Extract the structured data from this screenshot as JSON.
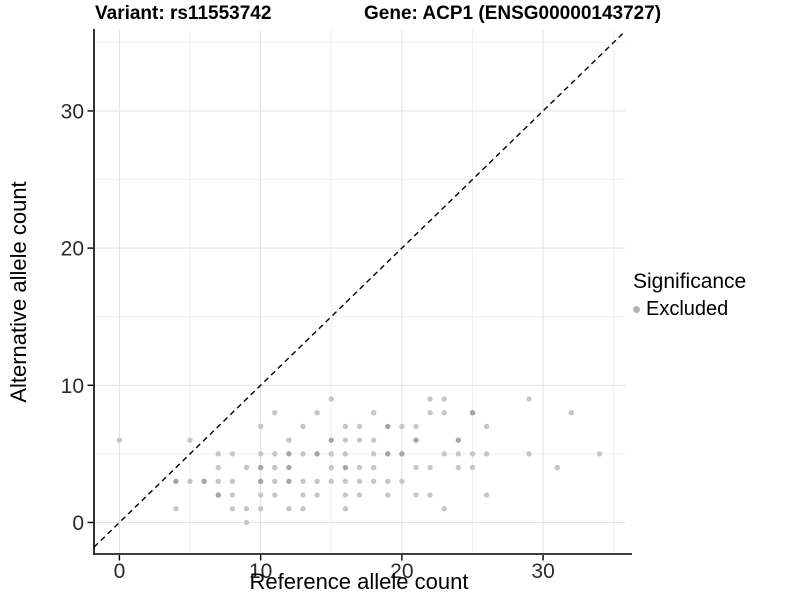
{
  "header": {
    "variant_title": "Variant: rs11553742",
    "gene_title": "Gene: ACP1 (ENSG00000143727)"
  },
  "legend": {
    "title": "Significance",
    "items": [
      {
        "label": "Excluded",
        "color": "#b3b3b3"
      }
    ]
  },
  "chart_data": {
    "type": "scatter",
    "title": "Variant: rs11553742  /  Gene: ACP1 (ENSG00000143727)",
    "xlabel": "Reference allele count",
    "ylabel": "Alternative allele count",
    "xlim": [
      -1.8,
      35.8
    ],
    "ylim": [
      -2.3,
      35.9
    ],
    "x_ticks": [
      0,
      10,
      20,
      30
    ],
    "y_ticks": [
      0,
      10,
      20,
      30
    ],
    "x_minor_ticks": [
      5,
      15,
      25,
      35
    ],
    "y_minor_ticks": [
      5,
      15,
      25,
      35
    ],
    "grid": true,
    "legend_position": "right",
    "identity_line": {
      "type": "abline",
      "slope": 1,
      "intercept": 0,
      "style": "dashed",
      "color": "#000000"
    },
    "colors": {
      "point_single": "#c7c7c7",
      "point_overlap": "#a5a5a5",
      "grid_major": "#e4e4e4",
      "grid_minor": "#f0f0f0",
      "axis": "#000000",
      "tick_label": "#2b2b2b"
    },
    "points_format": "[reference_allele_count, alternative_allele_count, multiplicity]",
    "points": [
      [
        15,
        9,
        1
      ],
      [
        22,
        9,
        1
      ],
      [
        23,
        9,
        1
      ],
      [
        29,
        9,
        1
      ],
      [
        11,
        8,
        1
      ],
      [
        14,
        8,
        1
      ],
      [
        18,
        8,
        1
      ],
      [
        22,
        8,
        1
      ],
      [
        23,
        8,
        1
      ],
      [
        25,
        8,
        2
      ],
      [
        32,
        8,
        1
      ],
      [
        10,
        7,
        1
      ],
      [
        13,
        7,
        1
      ],
      [
        16,
        7,
        1
      ],
      [
        17,
        7,
        1
      ],
      [
        19,
        7,
        2
      ],
      [
        20,
        7,
        1
      ],
      [
        21,
        7,
        1
      ],
      [
        26,
        7,
        1
      ],
      [
        0,
        6,
        1
      ],
      [
        5,
        6,
        1
      ],
      [
        12,
        6,
        1
      ],
      [
        15,
        6,
        2
      ],
      [
        16,
        6,
        1
      ],
      [
        17,
        6,
        1
      ],
      [
        18,
        6,
        1
      ],
      [
        21,
        6,
        2
      ],
      [
        24,
        6,
        2
      ],
      [
        7,
        5,
        1
      ],
      [
        8,
        5,
        1
      ],
      [
        10,
        5,
        1
      ],
      [
        11,
        5,
        1
      ],
      [
        12,
        5,
        2
      ],
      [
        13,
        5,
        1
      ],
      [
        14,
        5,
        2
      ],
      [
        15,
        5,
        1
      ],
      [
        16,
        5,
        1
      ],
      [
        18,
        5,
        1
      ],
      [
        19,
        5,
        2
      ],
      [
        20,
        5,
        2
      ],
      [
        23,
        5,
        1
      ],
      [
        24,
        5,
        1
      ],
      [
        25,
        5,
        1
      ],
      [
        26,
        5,
        1
      ],
      [
        29,
        5,
        1
      ],
      [
        34,
        5,
        1
      ],
      [
        7,
        4,
        1
      ],
      [
        9,
        4,
        1
      ],
      [
        10,
        4,
        2
      ],
      [
        11,
        4,
        1
      ],
      [
        12,
        4,
        2
      ],
      [
        15,
        4,
        1
      ],
      [
        16,
        4,
        2
      ],
      [
        17,
        4,
        1
      ],
      [
        18,
        4,
        1
      ],
      [
        21,
        4,
        1
      ],
      [
        22,
        4,
        1
      ],
      [
        24,
        4,
        1
      ],
      [
        25,
        4,
        1
      ],
      [
        31,
        4,
        1
      ],
      [
        4,
        3,
        2
      ],
      [
        5,
        3,
        1
      ],
      [
        6,
        3,
        2
      ],
      [
        7,
        3,
        1
      ],
      [
        8,
        3,
        1
      ],
      [
        10,
        3,
        2
      ],
      [
        11,
        3,
        1
      ],
      [
        12,
        3,
        2
      ],
      [
        13,
        3,
        1
      ],
      [
        14,
        3,
        1
      ],
      [
        15,
        3,
        1
      ],
      [
        16,
        3,
        1
      ],
      [
        17,
        3,
        1
      ],
      [
        18,
        3,
        1
      ],
      [
        19,
        3,
        1
      ],
      [
        20,
        3,
        1
      ],
      [
        7,
        2,
        2
      ],
      [
        8,
        2,
        1
      ],
      [
        10,
        2,
        1
      ],
      [
        11,
        2,
        1
      ],
      [
        13,
        2,
        1
      ],
      [
        14,
        2,
        1
      ],
      [
        16,
        2,
        1
      ],
      [
        17,
        2,
        1
      ],
      [
        19,
        2,
        1
      ],
      [
        21,
        2,
        1
      ],
      [
        22,
        2,
        1
      ],
      [
        26,
        2,
        1
      ],
      [
        4,
        1,
        1
      ],
      [
        8,
        1,
        1
      ],
      [
        9,
        1,
        1
      ],
      [
        10,
        1,
        1
      ],
      [
        12,
        1,
        1
      ],
      [
        13,
        1,
        1
      ],
      [
        16,
        1,
        1
      ],
      [
        23,
        1,
        1
      ],
      [
        9,
        0,
        1
      ]
    ]
  }
}
